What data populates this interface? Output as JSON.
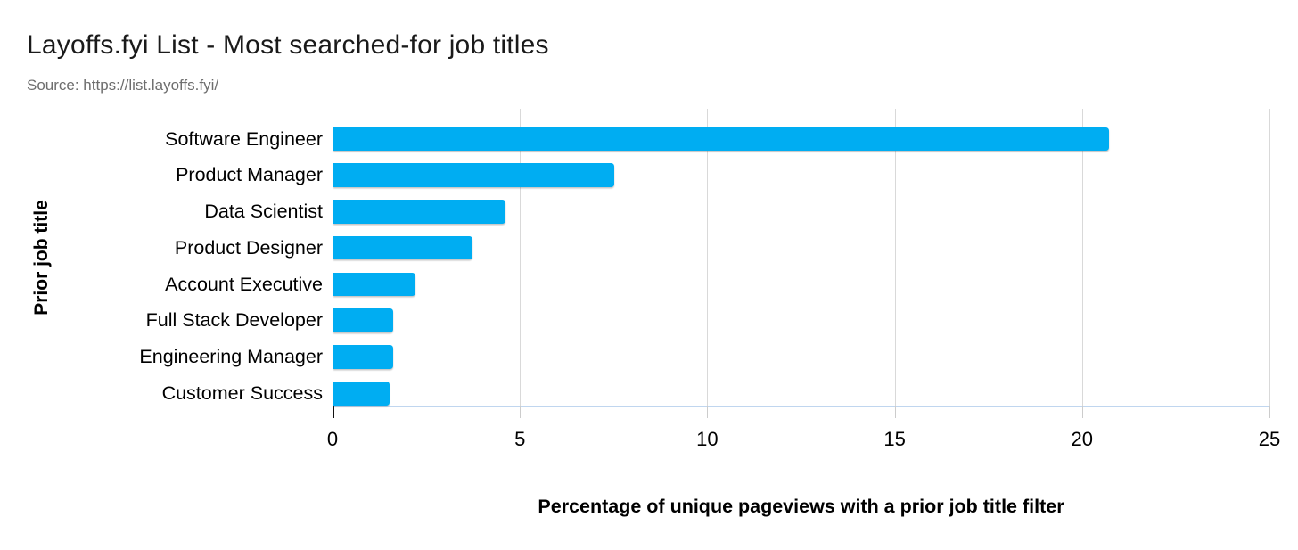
{
  "header": {
    "title": "Layoffs.fyi List - Most searched-for job titles",
    "source": "Source: https://list.layoffs.fyi/"
  },
  "chart_data": {
    "type": "bar",
    "orientation": "horizontal",
    "title": "Layoffs.fyi List - Most searched-for job titles",
    "subtitle": "Source: https://list.layoffs.fyi/",
    "categories": [
      "Software Engineer",
      "Product Manager",
      "Data Scientist",
      "Product Designer",
      "Account Executive",
      "Full Stack Developer",
      "Engineering Manager",
      "Customer Success"
    ],
    "values": [
      20.7,
      7.5,
      4.6,
      3.7,
      2.2,
      1.6,
      1.6,
      1.5
    ],
    "xlabel": "Percentage of unique pageviews with a prior job title filter",
    "ylabel": "Prior job title",
    "xticks": [
      0,
      5,
      10,
      15,
      20,
      25
    ],
    "xlim": [
      0,
      25
    ],
    "grid": "vertical-only",
    "legend": "none",
    "bar_color": "#00adf2",
    "gridline_color": "#d9d9d9",
    "axis_line_color": "#111111",
    "title_color": "#1a1a1a",
    "source_color": "#6e6e6e"
  }
}
